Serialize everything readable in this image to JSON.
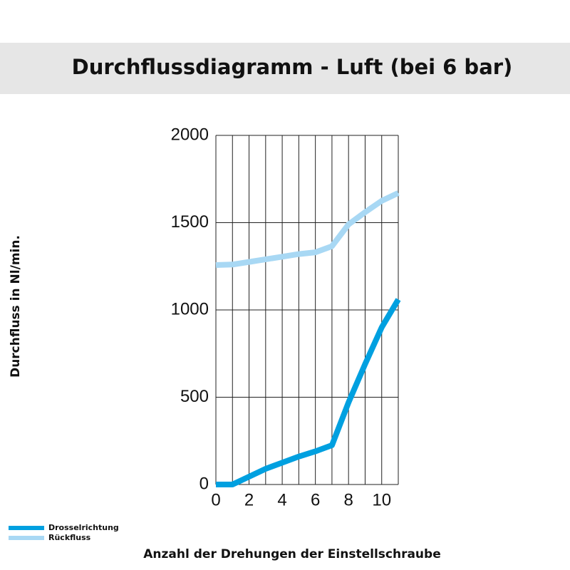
{
  "chart_data": {
    "type": "line",
    "title": "Durchflussdiagramm - Luft (bei 6 bar)",
    "y_label": "Durchfluss in Nl/min.",
    "x_label": "Anzahl der Drehungen der Einstellschraube",
    "x": [
      0,
      1,
      2,
      3,
      4,
      5,
      6,
      7,
      8,
      9,
      10,
      11
    ],
    "series": [
      {
        "name": "Drosselrichtung",
        "color": "#00a0e0",
        "values": [
          0,
          0,
          45,
          90,
          125,
          160,
          190,
          225,
          470,
          690,
          900,
          1060
        ]
      },
      {
        "name": "Rückfluss",
        "color": "#a8d8f4",
        "values": [
          1257,
          1260,
          1275,
          1290,
          1305,
          1320,
          1330,
          1365,
          1490,
          1560,
          1625,
          1670
        ]
      }
    ],
    "xlim": [
      0,
      11
    ],
    "ylim": [
      0,
      2000
    ],
    "xticks": [
      0,
      2,
      4,
      6,
      8,
      10
    ],
    "yticks": [
      0,
      500,
      1000,
      1500,
      2000
    ],
    "xgrid": [
      0,
      1,
      2,
      3,
      4,
      5,
      6,
      7,
      8,
      9,
      10,
      11
    ],
    "grid": true,
    "legend": "bottom-left"
  }
}
